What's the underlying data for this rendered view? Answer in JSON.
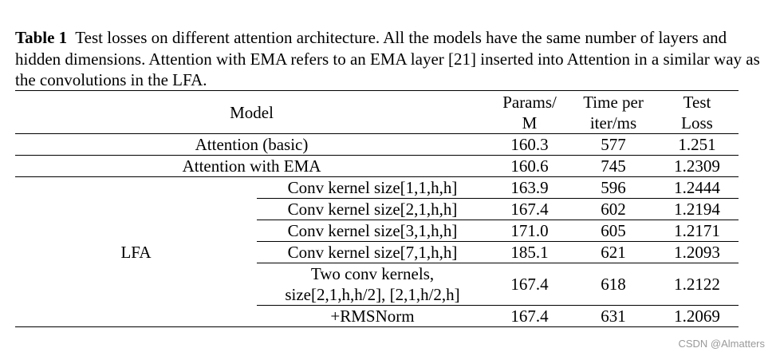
{
  "caption": {
    "label": "Table 1",
    "text": "Test losses on different attention architecture. All the models have the same number of layers and hidden dimensions. Attention with EMA refers to an EMA layer [21] inserted into Attention in a similar way as the convolutions in the LFA."
  },
  "table": {
    "headers": {
      "model": "Model",
      "params_1": "Params/",
      "params_2": "M",
      "time_1": "Time per",
      "time_2": "iter/ms",
      "loss_1": "Test",
      "loss_2": "Loss"
    },
    "rows": [
      {
        "model": "Attention (basic)",
        "variant": "",
        "params": "160.3",
        "time": "577",
        "loss": "1.251"
      },
      {
        "model": "Attention with EMA",
        "variant": "",
        "params": "160.6",
        "time": "745",
        "loss": "1.2309"
      },
      {
        "model": "LFA",
        "variant": "Conv kernel size[1,1,h,h]",
        "params": "163.9",
        "time": "596",
        "loss": "1.2444"
      },
      {
        "model": "",
        "variant": "Conv kernel size[2,1,h,h]",
        "params": "167.4",
        "time": "602",
        "loss": "1.2194"
      },
      {
        "model": "",
        "variant": "Conv kernel size[3,1,h,h]",
        "params": "171.0",
        "time": "605",
        "loss": "1.2171"
      },
      {
        "model": "",
        "variant": "Conv kernel size[7,1,h,h]",
        "params": "185.1",
        "time": "621",
        "loss": "1.2093"
      },
      {
        "model": "",
        "variant_1": "Two conv kernels,",
        "variant_2": "size[2,1,h,h/2], [2,1,h/2,h]",
        "params": "167.4",
        "time": "618",
        "loss": "1.2122"
      },
      {
        "model": "",
        "variant": "+RMSNorm",
        "params": "167.4",
        "time": "631",
        "loss": "1.2069"
      }
    ]
  },
  "watermark": "CSDN @Almatters"
}
